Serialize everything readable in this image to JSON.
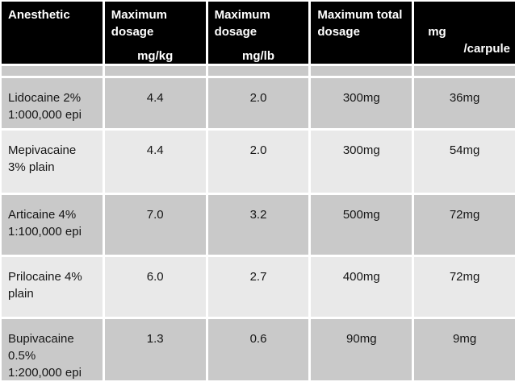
{
  "chart_data": {
    "type": "table",
    "description": "Local anesthetic maximum dosage table on a presentation slide",
    "header": {
      "col1": "Anesthetic",
      "col2_title": "Maximum dosage",
      "col2_unit": "mg/kg",
      "col3_title": "Maximum dosage",
      "col3_unit": "mg/lb",
      "col4_title": "Maximum total dosage",
      "col5_unit_line1": "mg",
      "col5_unit_line2": "/carpule"
    },
    "columns": [
      "Anesthetic",
      "Maximum dosage mg/kg",
      "Maximum dosage mg/lb",
      "Maximum total dosage",
      "mg /carpule"
    ],
    "rows": [
      {
        "name": "Lidocaine 2%\n1:000,000 epi",
        "mg_kg": "4.4",
        "mg_lb": "2.0",
        "total": "300mg",
        "per_carpule": "36mg"
      },
      {
        "name": "Mepivacaine\n3% plain",
        "mg_kg": "4.4",
        "mg_lb": "2.0",
        "total": "300mg",
        "per_carpule": "54mg"
      },
      {
        "name": "Articaine 4%\n1:100,000 epi",
        "mg_kg": "7.0",
        "mg_lb": "3.2",
        "total": "500mg",
        "per_carpule": "72mg"
      },
      {
        "name": "Prilocaine 4%\nplain",
        "mg_kg": "6.0",
        "mg_lb": "2.7",
        "total": "400mg",
        "per_carpule": "72mg"
      },
      {
        "name": "Bupivacaine\n0.5%\n1:200,000 epi",
        "mg_kg": "1.3",
        "mg_lb": "0.6",
        "total": "90mg",
        "per_carpule": "9mg"
      }
    ]
  },
  "colors": {
    "header_bg": "#000000",
    "header_text": "#ffffff",
    "row_dark": "#c9c9c9",
    "row_light": "#e9e9e9",
    "grid_lines": "#ffffff",
    "body_text": "#161616"
  }
}
